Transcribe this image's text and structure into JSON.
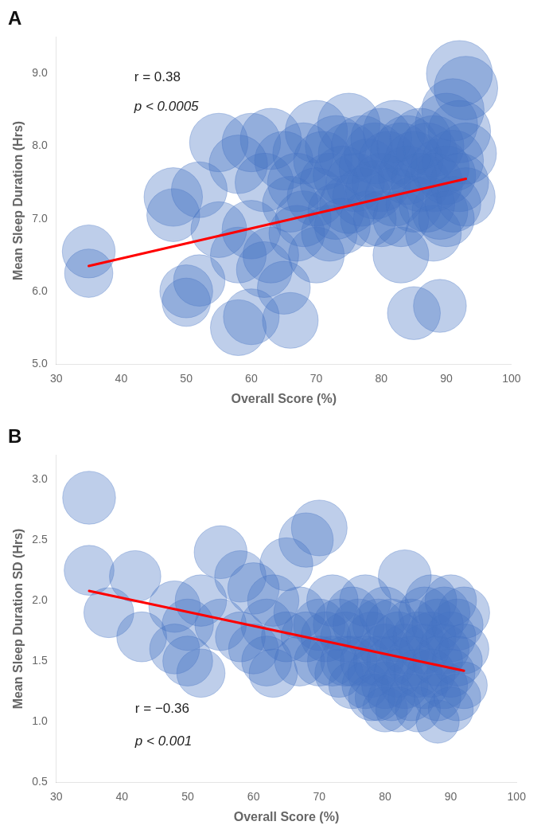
{
  "chart_data": [
    {
      "type": "bubble",
      "title": "A",
      "xlabel": "Overall Score (%)",
      "ylabel": "Mean Sleep Duration (Hrs)",
      "xlim": [
        30,
        100
      ],
      "ylim": [
        5.0,
        9.5
      ],
      "xticks": [
        30,
        40,
        50,
        60,
        70,
        80,
        90,
        100
      ],
      "yticks": [
        {
          "value": 5.0,
          "label": "5.0"
        },
        {
          "value": 6.0,
          "label": "6.0"
        },
        {
          "value": 7.0,
          "label": "7.0"
        },
        {
          "value": 8.0,
          "label": "8.0"
        },
        {
          "value": 9.0,
          "label": "9.0"
        }
      ],
      "grid": false,
      "legend": false,
      "color": "#4472C4",
      "x": [
        35,
        35,
        48,
        48,
        50,
        50,
        52,
        52,
        55,
        55,
        58,
        58,
        58,
        60,
        60,
        60,
        62,
        62,
        63,
        63,
        65,
        65,
        66,
        66,
        67,
        67,
        68,
        68,
        70,
        70,
        70,
        71,
        72,
        72,
        73,
        73,
        74,
        74,
        75,
        75,
        75,
        76,
        77,
        77,
        78,
        78,
        79,
        79,
        80,
        80,
        80,
        81,
        82,
        82,
        83,
        83,
        83,
        84,
        84,
        85,
        85,
        85,
        86,
        86,
        87,
        87,
        88,
        88,
        88,
        89,
        89,
        89,
        90,
        90,
        90,
        91,
        91,
        91,
        92,
        92,
        92,
        93,
        93,
        93
      ],
      "values": [
        6.55,
        6.25,
        7.3,
        7.05,
        6.0,
        5.85,
        7.4,
        6.15,
        6.85,
        8.05,
        6.5,
        7.75,
        5.5,
        6.85,
        8.05,
        5.65,
        7.5,
        6.3,
        8.1,
        6.5,
        7.8,
        6.05,
        7.2,
        5.6,
        7.5,
        6.8,
        7.9,
        7.0,
        8.2,
        7.3,
        6.5,
        7.8,
        7.5,
        6.8,
        8.0,
        7.1,
        7.6,
        6.9,
        7.9,
        7.2,
        8.3,
        7.5,
        8.0,
        7.3,
        7.7,
        7.0,
        7.9,
        7.4,
        8.1,
        7.5,
        7.0,
        7.8,
        8.2,
        7.3,
        7.9,
        7.0,
        6.5,
        7.6,
        8.0,
        7.8,
        7.2,
        5.7,
        8.1,
        7.5,
        7.9,
        7.2,
        8.0,
        7.5,
        6.8,
        7.7,
        7.1,
        5.8,
        8.3,
        7.6,
        7.0,
        8.5,
        7.8,
        7.2,
        9.0,
        8.2,
        7.5,
        8.8,
        7.9,
        7.3
      ],
      "sizes": [
        1800,
        1500,
        2200,
        1800,
        1800,
        1500,
        2000,
        1700,
        2000,
        2200,
        2000,
        2200,
        2000,
        2200,
        2200,
        2000,
        2200,
        2000,
        2400,
        2000,
        2200,
        1800,
        2000,
        2000,
        2200,
        2000,
        2400,
        2000,
        2500,
        2200,
        2000,
        2200,
        2200,
        2000,
        2400,
        2000,
        2200,
        2000,
        2400,
        2200,
        2500,
        2200,
        2400,
        2200,
        2200,
        2000,
        2400,
        2200,
        2400,
        2200,
        2000,
        2200,
        2500,
        2200,
        2400,
        2000,
        2000,
        2200,
        2400,
        2200,
        2000,
        1800,
        2400,
        2200,
        2400,
        2000,
        2400,
        2200,
        2000,
        2200,
        2000,
        1800,
        2500,
        2200,
        2000,
        2500,
        2400,
        2000,
        2800,
        2500,
        2200,
        2600,
        2400,
        2200
      ],
      "line": {
        "type": "line",
        "color": "red",
        "x": [
          35,
          93
        ],
        "values": [
          6.35,
          7.55
        ]
      },
      "annotations": [
        {
          "text": "r = 0.38",
          "x": 42,
          "y": 8.85,
          "style": "normal"
        },
        {
          "text": "p < 0.0005",
          "x": 42,
          "y": 8.45,
          "style": "italic"
        }
      ]
    },
    {
      "type": "bubble",
      "title": "B",
      "xlabel": "Overall Score (%)",
      "ylabel": "Mean Sleep Duration SD (Hrs)",
      "xlim": [
        30,
        100
      ],
      "ylim": [
        0.5,
        3.2
      ],
      "xticks": [
        30,
        40,
        50,
        60,
        70,
        80,
        90,
        100
      ],
      "yticks": [
        0.5,
        {
          "value": 1.0,
          "label": "1.0"
        },
        1.5,
        {
          "value": 2.0,
          "label": "2.0"
        },
        2.5,
        {
          "value": 3.0,
          "label": "3.0"
        }
      ],
      "grid": false,
      "legend": false,
      "color": "#4472C4",
      "x": [
        35,
        35,
        38,
        42,
        43,
        48,
        48,
        50,
        50,
        52,
        52,
        55,
        55,
        58,
        58,
        60,
        60,
        62,
        62,
        63,
        63,
        65,
        65,
        67,
        67,
        68,
        68,
        70,
        70,
        70,
        71,
        72,
        72,
        73,
        73,
        74,
        74,
        75,
        75,
        75,
        76,
        77,
        77,
        77,
        78,
        78,
        78,
        79,
        79,
        79,
        80,
        80,
        80,
        80,
        81,
        81,
        81,
        82,
        82,
        82,
        83,
        83,
        83,
        84,
        84,
        84,
        85,
        85,
        85,
        86,
        86,
        86,
        87,
        87,
        87,
        88,
        88,
        88,
        88,
        89,
        89,
        89,
        90,
        90,
        90,
        90,
        91,
        91,
        91,
        92,
        92,
        92
      ],
      "values": [
        2.85,
        2.25,
        1.9,
        2.2,
        1.7,
        1.95,
        1.6,
        1.8,
        1.5,
        2.0,
        1.4,
        1.8,
        2.4,
        1.7,
        2.2,
        1.6,
        2.1,
        1.8,
        1.5,
        2.0,
        1.4,
        1.7,
        2.3,
        1.9,
        1.5,
        2.5,
        1.7,
        2.6,
        1.8,
        1.5,
        1.7,
        2.0,
        1.5,
        1.8,
        1.4,
        1.7,
        1.5,
        1.9,
        1.5,
        1.3,
        1.8,
        2.0,
        1.5,
        1.3,
        1.7,
        1.4,
        1.2,
        1.8,
        1.5,
        1.2,
        1.9,
        1.6,
        1.3,
        1.1,
        1.8,
        1.5,
        1.2,
        1.7,
        1.4,
        1.1,
        2.2,
        1.6,
        1.3,
        1.8,
        1.5,
        1.2,
        1.7,
        1.4,
        1.1,
        1.9,
        1.6,
        1.3,
        2.0,
        1.7,
        1.4,
        1.8,
        1.5,
        1.2,
        1.0,
        1.9,
        1.6,
        1.3,
        2.0,
        1.7,
        1.4,
        1.1,
        1.8,
        1.5,
        1.2,
        1.9,
        1.6,
        1.3
      ],
      "sizes": [
        1800,
        1600,
        1600,
        1700,
        1600,
        1700,
        1600,
        1700,
        1600,
        1700,
        1500,
        1700,
        1800,
        1600,
        1700,
        1600,
        1700,
        1700,
        1600,
        1700,
        1500,
        1600,
        1800,
        1700,
        1600,
        1900,
        1600,
        2000,
        1700,
        1600,
        1600,
        1700,
        1600,
        1700,
        1500,
        1600,
        1600,
        1700,
        1600,
        1400,
        1700,
        1700,
        1600,
        1400,
        1600,
        1500,
        1400,
        1700,
        1600,
        1400,
        1700,
        1600,
        1400,
        1300,
        1700,
        1600,
        1400,
        1600,
        1500,
        1300,
        1800,
        1600,
        1400,
        1700,
        1600,
        1400,
        1600,
        1500,
        1300,
        1700,
        1600,
        1400,
        1700,
        1600,
        1500,
        1700,
        1600,
        1400,
        1200,
        1700,
        1600,
        1400,
        1700,
        1600,
        1500,
        1300,
        1700,
        1600,
        1400,
        1700,
        1600,
        1400
      ],
      "line": {
        "type": "line",
        "color": "red",
        "x": [
          35,
          92
        ],
        "values": [
          2.08,
          1.42
        ]
      },
      "annotations": [
        {
          "text": "r = −0.36",
          "x": 42,
          "y": 1.05,
          "style": "normal"
        },
        {
          "text": "p < 0.001",
          "x": 42,
          "y": 0.78,
          "style": "italic"
        }
      ]
    }
  ]
}
